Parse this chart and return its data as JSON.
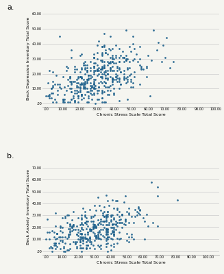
{
  "plot_a": {
    "label": "a.",
    "xlabel": "Chronic Stress Scale Total Score",
    "ylabel": "Beck Depression Inventory Total Score",
    "xlim": [
      -2,
      102
    ],
    "ylim": [
      -2,
      62
    ],
    "xticks": [
      0,
      10,
      20,
      30,
      40,
      50,
      60,
      70,
      80,
      90,
      100
    ],
    "yticks": [
      0,
      10,
      20,
      30,
      40,
      50,
      60
    ],
    "xtick_labels": [
      ".00",
      "10.00",
      "20.00",
      "30.00",
      "40.00",
      "50.00",
      "60.00",
      "70.00",
      "80.00",
      "90.00",
      "100.00"
    ],
    "ytick_labels": [
      ".00",
      "10.00",
      "20.00",
      "30.00",
      "40.00",
      "50.00",
      "60.00"
    ],
    "dot_color": "#1a5e8a",
    "n_points": 420,
    "x_mean": 28,
    "x_std": 16,
    "y_mean": 16,
    "y_std": 12,
    "correlation": 0.55,
    "x_max": 100,
    "y_max": 60
  },
  "plot_b": {
    "label": "b.",
    "xlabel": "Chronic Stress Scale Total Score",
    "ylabel": "Beck Anxiety Inventory Total Score",
    "xlim": [
      -2,
      107
    ],
    "ylim": [
      -3,
      77
    ],
    "xticks": [
      0,
      10,
      20,
      30,
      40,
      50,
      60,
      70,
      80,
      90,
      100
    ],
    "yticks": [
      0,
      10,
      20,
      30,
      40,
      50,
      60,
      70
    ],
    "xtick_labels": [
      ".00",
      "10.00",
      "20.00",
      "30.00",
      "40.00",
      "50.00",
      "60.00",
      "70.00",
      "80.00",
      "90.00",
      "100.00"
    ],
    "ytick_labels": [
      ".00",
      "10.00",
      "20.00",
      "30.00",
      "40.00",
      "50.00",
      "60.00",
      "70.00"
    ],
    "dot_color": "#1a5e8a",
    "n_points": 380,
    "x_mean": 27,
    "x_std": 16,
    "y_mean": 15,
    "y_std": 12,
    "correlation": 0.5,
    "x_max": 100,
    "y_max": 70
  },
  "background_color": "#f5f5f0",
  "grid_color": "#d0d0d0",
  "grid_linewidth": 0.6,
  "dot_size": 4,
  "dot_alpha": 0.9
}
